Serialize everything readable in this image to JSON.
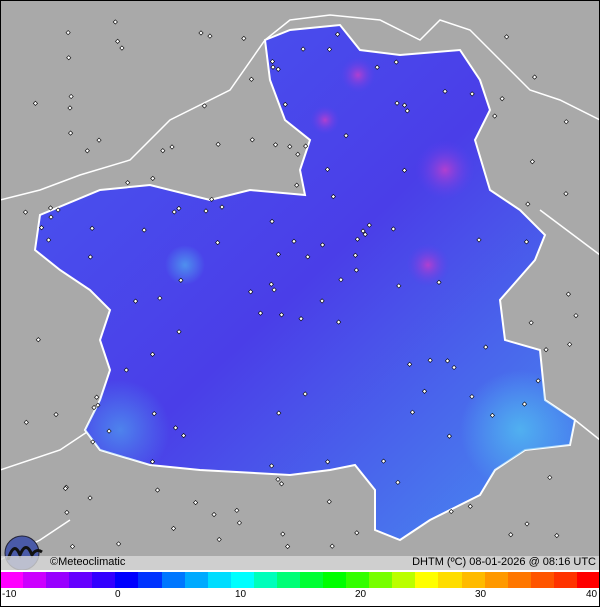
{
  "map": {
    "credit": "©Meteoclimatic",
    "variable_label": "DHTM (ºC) 08-01-2026 @ 08:16 UTC",
    "logo": "meteoclimatic-logo"
  },
  "legend": {
    "ticks": [
      "-10",
      "0",
      "10",
      "20",
      "30",
      "40"
    ],
    "range": [
      -10,
      40
    ],
    "colors": [
      "#ff00ff",
      "#cc00ff",
      "#9900ff",
      "#6600ff",
      "#3300ff",
      "#0000ff",
      "#0033ff",
      "#0077ff",
      "#00aaff",
      "#00ddff",
      "#00ffff",
      "#00ffbb",
      "#00ff77",
      "#00ff33",
      "#00ff00",
      "#33ff00",
      "#77ff00",
      "#bbff00",
      "#ffff00",
      "#ffdd00",
      "#ffbb00",
      "#ff9900",
      "#ff7700",
      "#ff5500",
      "#ff3300",
      "#ff0000"
    ]
  },
  "colors": {
    "region": "#4a4cf0",
    "hotspot": "#8a3ae0",
    "coolspot": "#4aa0f0",
    "terrain": "#a8a8a8"
  }
}
